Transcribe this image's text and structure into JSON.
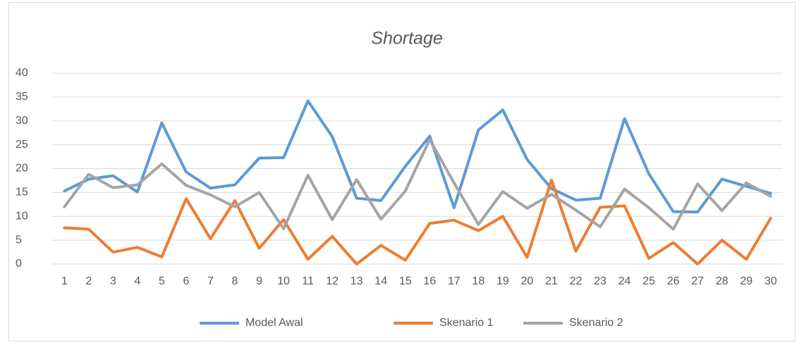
{
  "chart_data": {
    "type": "line",
    "title": "Shortage",
    "categories": [
      "1",
      "2",
      "3",
      "4",
      "5",
      "6",
      "7",
      "8",
      "9",
      "10",
      "11",
      "12",
      "13",
      "14",
      "15",
      "16",
      "17",
      "18",
      "19",
      "20",
      "21",
      "22",
      "23",
      "24",
      "25",
      "26",
      "27",
      "28",
      "29",
      "30"
    ],
    "series": [
      {
        "name": "Model Awal",
        "color": "#5b9bd5",
        "values": [
          15.3,
          17.8,
          18.5,
          15.1,
          29.6,
          19.3,
          15.9,
          16.6,
          22.2,
          22.3,
          34.2,
          26.7,
          13.8,
          13.3,
          20.5,
          26.8,
          11.8,
          28.1,
          32.3,
          21.9,
          15.8,
          13.4,
          13.8,
          30.5,
          18.9,
          11.0,
          10.9,
          17.8,
          16.3,
          14.8
        ]
      },
      {
        "name": "Skenario 1",
        "color": "#ed7d31",
        "values": [
          7.6,
          7.3,
          2.5,
          3.5,
          1.5,
          13.7,
          5.3,
          13.3,
          3.3,
          9.3,
          1.0,
          5.8,
          0.0,
          3.9,
          0.8,
          8.5,
          9.2,
          7.0,
          10.0,
          1.4,
          17.6,
          2.7,
          11.9,
          12.2,
          1.2,
          4.5,
          0.0,
          5.0,
          1.0,
          9.6
        ]
      },
      {
        "name": "Skenario 2",
        "color": "#a5a5a5",
        "values": [
          12.0,
          18.8,
          16.0,
          16.6,
          21.0,
          16.5,
          14.5,
          12.0,
          15.0,
          7.4,
          18.6,
          9.3,
          17.7,
          9.4,
          15.3,
          26.1,
          17.0,
          8.3,
          15.2,
          11.7,
          14.6,
          11.3,
          7.8,
          15.7,
          11.8,
          7.3,
          16.8,
          11.2,
          17.0,
          14.2
        ]
      }
    ],
    "ylim": [
      0,
      40
    ],
    "yticks": [
      0,
      5,
      10,
      15,
      20,
      25,
      30,
      35,
      40
    ],
    "grid": true,
    "legend": "bottom"
  }
}
